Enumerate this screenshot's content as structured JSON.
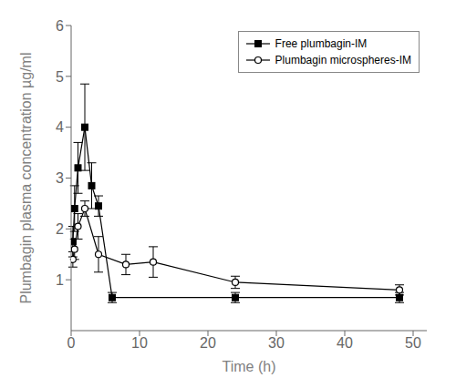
{
  "chart_data": {
    "type": "line",
    "xlabel": "Time (h)",
    "ylabel": "Plumbagin plasma concentration µg/ml",
    "xlim": [
      0,
      52
    ],
    "ylim": [
      0,
      6
    ],
    "xticks": [
      0,
      10,
      20,
      30,
      40,
      50
    ],
    "yticks": [
      1,
      2,
      3,
      4,
      5,
      6
    ],
    "grid": false,
    "legend": "upper right",
    "series": [
      {
        "name": "Free plumbagin-IM",
        "color": "#000000",
        "marker": "square",
        "x": [
          0.25,
          0.5,
          1.0,
          2.0,
          3.0,
          4.0,
          6.0,
          24.0,
          48.0
        ],
        "values": [
          1.75,
          2.4,
          3.2,
          4.0,
          2.85,
          2.45,
          0.65,
          0.65,
          0.65
        ],
        "yerr": [
          0.3,
          0.45,
          0.5,
          0.85,
          0.45,
          0.2,
          0.1,
          0.1,
          0.1
        ]
      },
      {
        "name": "Plumbagin microspheres-IM",
        "color": "#000000",
        "marker": "circle",
        "x": [
          0.25,
          0.5,
          1.0,
          2.0,
          4.0,
          8.0,
          12.0,
          24.0,
          48.0
        ],
        "values": [
          1.4,
          1.6,
          2.05,
          2.4,
          1.5,
          1.3,
          1.35,
          0.95,
          0.8
        ],
        "yerr": [
          0.15,
          0.2,
          0.25,
          0.15,
          0.35,
          0.2,
          0.3,
          0.12,
          0.1
        ]
      }
    ]
  }
}
